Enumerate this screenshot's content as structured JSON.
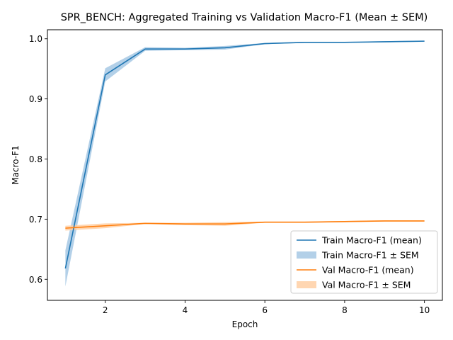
{
  "chart_data": {
    "type": "line",
    "title": "SPR_BENCH: Aggregated Training vs Validation Macro-F1 (Mean ± SEM)",
    "xlabel": "Epoch",
    "ylabel": "Macro-F1",
    "xlim": [
      0.55,
      10.45
    ],
    "ylim": [
      0.565,
      1.015
    ],
    "xticks": [
      2,
      4,
      6,
      8,
      10
    ],
    "yticks": [
      0.6,
      0.7,
      0.8,
      0.9,
      1.0
    ],
    "ytick_labels": [
      "0.6",
      "0.7",
      "0.8",
      "0.9",
      "1.0"
    ],
    "grid": false,
    "legend_position": "lower right",
    "x": [
      1,
      2,
      3,
      4,
      5,
      6,
      7,
      8,
      9,
      10
    ],
    "series": [
      {
        "name": "Train Macro-F1 (mean)",
        "band_name": "Train Macro-F1 ± SEM",
        "color": "#1f77b4",
        "band_color": "#a6c8e4",
        "mean": [
          0.618,
          0.94,
          0.983,
          0.983,
          0.985,
          0.992,
          0.994,
          0.994,
          0.995,
          0.996
        ],
        "sem": [
          0.03,
          0.011,
          0.003,
          0.002,
          0.003,
          0.001,
          0.001,
          0.001,
          0.001,
          0.001
        ]
      },
      {
        "name": "Val Macro-F1 (mean)",
        "band_name": "Val Macro-F1 ± SEM",
        "color": "#ff7f0e",
        "band_color": "#ffcfa3",
        "mean": [
          0.685,
          0.689,
          0.693,
          0.692,
          0.692,
          0.695,
          0.695,
          0.696,
          0.697,
          0.697
        ],
        "sem": [
          0.004,
          0.004,
          0.001,
          0.002,
          0.003,
          0.001,
          0.001,
          0.001,
          0.001,
          0.001
        ]
      }
    ]
  }
}
